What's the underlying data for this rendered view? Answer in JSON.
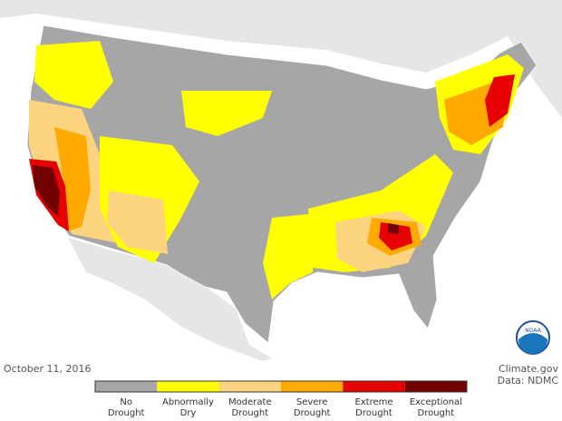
{
  "footer": {
    "date": "October 11, 2016",
    "source": "Climate.gov",
    "data_credit": "Data: NDMC"
  },
  "logo_text": "NOAA",
  "legend": {
    "items": [
      {
        "lines": [
          "No",
          "Drought"
        ],
        "color": "#a6a6a6"
      },
      {
        "lines": [
          "Abnormally",
          "Dry"
        ],
        "color": "#ffff00"
      },
      {
        "lines": [
          "Moderate",
          "Drought"
        ],
        "color": "#fcd37f"
      },
      {
        "lines": [
          "Severe",
          "Drought"
        ],
        "color": "#ffaa00"
      },
      {
        "lines": [
          "Extreme",
          "Drought"
        ],
        "color": "#e60000"
      },
      {
        "lines": [
          "Exceptional",
          "Drought"
        ],
        "color": "#730000"
      }
    ]
  }
}
